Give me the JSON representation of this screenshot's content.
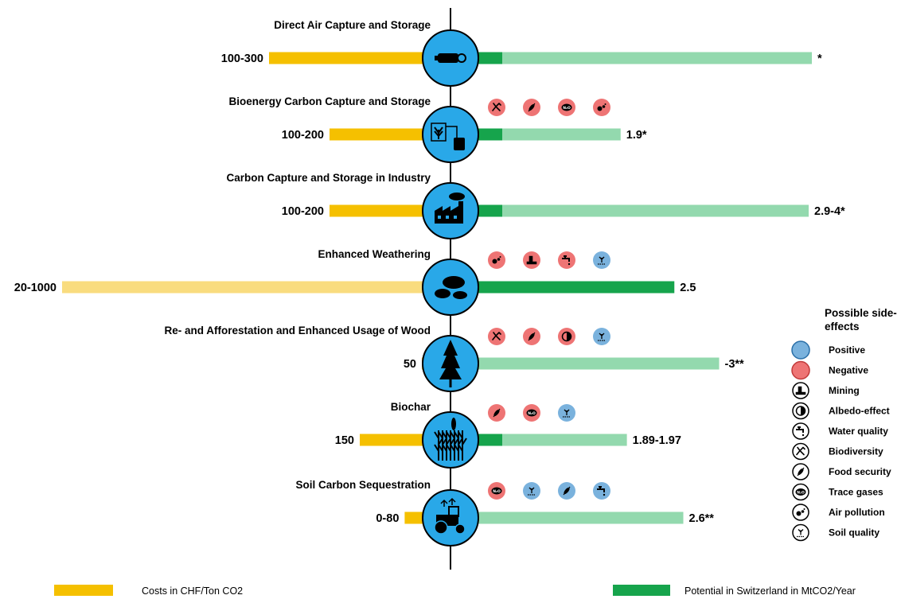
{
  "chart_data": {
    "type": "bar",
    "layout": "diverging-horizontal",
    "legend": {
      "cost_label": "Costs in CHF/Ton CO2",
      "potential_label": "Potential in Switzerland in MtCO2/Year",
      "side_effects_title": "Possible side-effects",
      "side_effects": [
        {
          "label": "Positive",
          "icon": "positive-circle-icon"
        },
        {
          "label": "Negative",
          "icon": "negative-circle-icon"
        },
        {
          "label": "Mining",
          "icon": "mining-icon"
        },
        {
          "label": "Albedo-effect",
          "icon": "albedo-icon"
        },
        {
          "label": "Water quality",
          "icon": "water-tap-icon"
        },
        {
          "label": "Biodiversity",
          "icon": "frog-icon"
        },
        {
          "label": "Food security",
          "icon": "wheat-icon"
        },
        {
          "label": "Trace gases",
          "icon": "trace-gas-icon"
        },
        {
          "label": "Air pollution",
          "icon": "air-pollution-icon"
        },
        {
          "label": "Soil quality",
          "icon": "soil-sprout-icon"
        }
      ]
    },
    "colors": {
      "cost": "#f5c000",
      "cost_light": "#f9dc7e",
      "potential_dark": "#16a44c",
      "potential_light": "#93d9ae",
      "circle": "#29a8e8",
      "positive": "#7ab2dd",
      "negative": "#ee7474"
    },
    "rows": [
      {
        "name": "Direct Air Capture and Storage",
        "cost_label": "100-300",
        "cost_min": 100,
        "cost_max": 300,
        "potential_label": "*",
        "potential_min": 0,
        "potential_max": null,
        "icon": "dac-machine-icon",
        "side_effects": []
      },
      {
        "name": "Bioenergy Carbon Capture and Storage",
        "cost_label": "100-200",
        "cost_min": 100,
        "cost_max": 200,
        "potential_label": "1.9*",
        "potential_min": 0,
        "potential_max": 1.9,
        "icon": "bioenergy-plant-icon",
        "side_effects": [
          {
            "type": "negative",
            "icon": "frog-icon"
          },
          {
            "type": "negative",
            "icon": "wheat-icon"
          },
          {
            "type": "negative",
            "icon": "trace-gas-icon"
          },
          {
            "type": "negative",
            "icon": "air-pollution-icon"
          }
        ]
      },
      {
        "name": "Carbon Capture and Storage in Industry",
        "cost_label": "100-200",
        "cost_min": 100,
        "cost_max": 200,
        "potential_label": "2.9-4*",
        "potential_min": 2.9,
        "potential_max": 4,
        "icon": "factory-icon",
        "side_effects": []
      },
      {
        "name": "Enhanced Weathering",
        "cost_label": "20-1000",
        "cost_min": 20,
        "cost_max": 1000,
        "potential_label": "2.5",
        "potential_min": 2.5,
        "potential_max": 2.5,
        "icon": "rocks-icon",
        "side_effects": [
          {
            "type": "negative",
            "icon": "air-pollution-icon"
          },
          {
            "type": "negative",
            "icon": "mining-icon"
          },
          {
            "type": "negative",
            "icon": "water-tap-icon"
          },
          {
            "type": "positive",
            "icon": "soil-sprout-icon"
          }
        ]
      },
      {
        "name": "Re- and Afforestation and Enhanced Usage of Wood",
        "cost_label": "50",
        "cost_min": 50,
        "cost_max": 50,
        "potential_label": "-3**",
        "potential_min": 0,
        "potential_max": 3,
        "icon": "tree-icon",
        "side_effects": [
          {
            "type": "negative",
            "icon": "frog-icon"
          },
          {
            "type": "negative",
            "icon": "wheat-icon"
          },
          {
            "type": "negative",
            "icon": "albedo-icon"
          },
          {
            "type": "positive",
            "icon": "soil-sprout-icon"
          }
        ]
      },
      {
        "name": "Biochar",
        "cost_label": "150",
        "cost_min": 150,
        "cost_max": 150,
        "potential_label": "1.89-1.97",
        "potential_min": 1.89,
        "potential_max": 1.97,
        "icon": "crops-icon",
        "side_effects": [
          {
            "type": "negative",
            "icon": "wheat-icon"
          },
          {
            "type": "negative",
            "icon": "trace-gas-icon"
          },
          {
            "type": "positive",
            "icon": "soil-sprout-icon"
          }
        ]
      },
      {
        "name": "Soil Carbon Sequestration",
        "cost_label": "0-80",
        "cost_min": 0,
        "cost_max": 80,
        "potential_label": "2.6**",
        "potential_min": 0,
        "potential_max": 2.6,
        "icon": "tractor-icon",
        "side_effects": [
          {
            "type": "negative",
            "icon": "trace-gas-icon"
          },
          {
            "type": "positive",
            "icon": "soil-sprout-icon"
          },
          {
            "type": "positive",
            "icon": "wheat-icon"
          },
          {
            "type": "positive",
            "icon": "water-tap-icon"
          }
        ]
      }
    ]
  }
}
